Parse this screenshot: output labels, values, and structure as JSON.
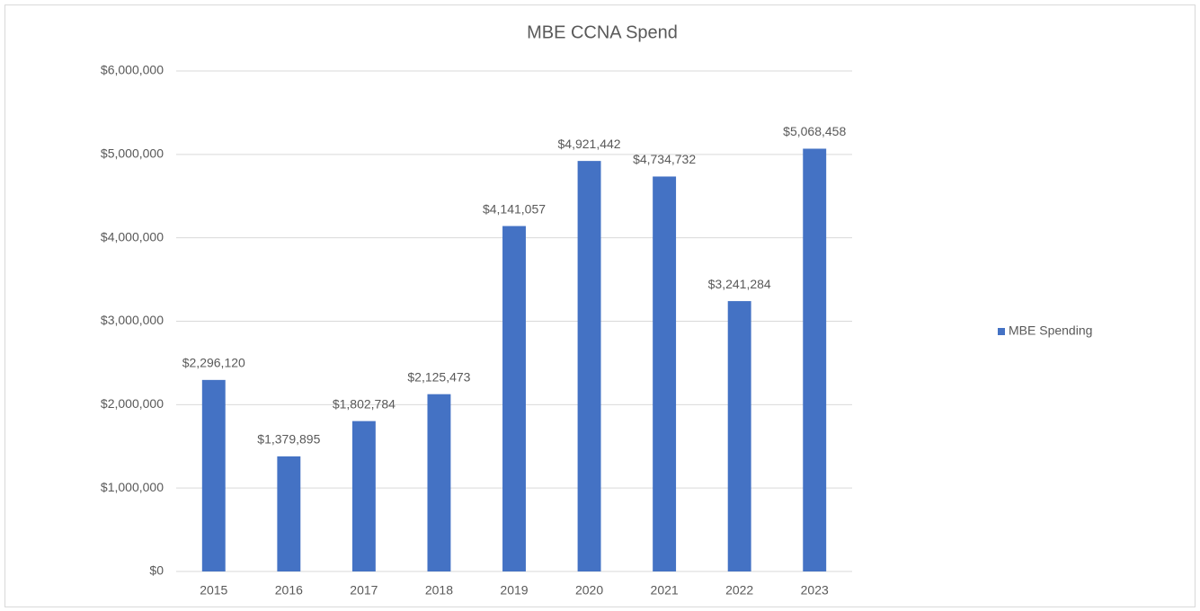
{
  "chart_data": {
    "type": "bar",
    "title": "MBE CCNA Spend",
    "categories": [
      "2015",
      "2016",
      "2017",
      "2018",
      "2019",
      "2020",
      "2021",
      "2022",
      "2023"
    ],
    "series": [
      {
        "name": "MBE Spending",
        "color": "#4472c4",
        "values": [
          2296120,
          1379895,
          1802784,
          2125473,
          4141057,
          4921442,
          4734732,
          3241284,
          5068458
        ],
        "value_labels": [
          "$2,296,120",
          "$1,379,895",
          "$1,802,784",
          "$2,125,473",
          "$4,141,057",
          "$4,921,442",
          "$4,734,732",
          "$3,241,284",
          "$5,068,458"
        ]
      }
    ],
    "ylim": [
      0,
      6000000
    ],
    "yticks": [
      {
        "value": 0,
        "label": "$0"
      },
      {
        "value": 1000000,
        "label": "$1,000,000"
      },
      {
        "value": 2000000,
        "label": "$2,000,000"
      },
      {
        "value": 3000000,
        "label": "$3,000,000"
      },
      {
        "value": 4000000,
        "label": "$4,000,000"
      },
      {
        "value": 5000000,
        "label": "$5,000,000"
      },
      {
        "value": 6000000,
        "label": "$6,000,000"
      }
    ],
    "grid": true,
    "legend": "right"
  }
}
